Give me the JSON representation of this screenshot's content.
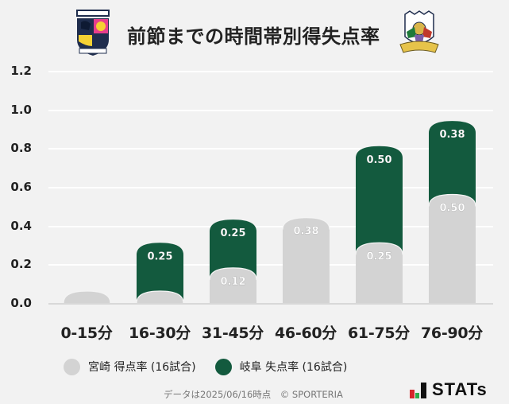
{
  "header": {
    "title": "前節までの時間帯別得失点率",
    "left_logo": "miyazaki-crest",
    "left_logo_text_top": "TEGEVAJARO",
    "left_logo_text_bottom": "MIYAZAKI",
    "right_logo": "fc-gifu-crest",
    "right_logo_text": "FC GIFU"
  },
  "colors": {
    "background": "#f2f2f2",
    "miyazaki": "#d3d3d3",
    "gifu": "#135a3e",
    "gridline": "#ffffff",
    "baseline": "#d8d8d8"
  },
  "legend": {
    "items": [
      {
        "label": "宮崎 得点率 (16試合)",
        "color": "#d3d3d3"
      },
      {
        "label": "岐阜 失点率 (16試合)",
        "color": "#135a3e"
      }
    ]
  },
  "footer": {
    "note": "データは2025/06/16時点　© SPORTERIA",
    "brand": "STATs"
  },
  "chart_data": {
    "type": "bar",
    "stacked": true,
    "title": "前節までの時間帯別得失点率",
    "xlabel": "",
    "ylabel": "",
    "ylim": [
      0,
      1.2
    ],
    "yticks": [
      "0.0",
      "0.2",
      "0.4",
      "0.6",
      "0.8",
      "1.0",
      "1.2"
    ],
    "grid": true,
    "legend_position": "bottom",
    "categories": [
      "0-15分",
      "16-30分",
      "31-45分",
      "46-60分",
      "61-75分",
      "76-90分"
    ],
    "series": [
      {
        "name": "宮崎 得点率 (16試合)",
        "color": "#d3d3d3",
        "values": [
          0,
          0,
          0.12,
          0.38,
          0.25,
          0.5
        ],
        "labels": [
          "",
          "",
          "0.12",
          "0.38",
          "0.25",
          "0.50"
        ]
      },
      {
        "name": "岐阜 失点率 (16試合)",
        "color": "#135a3e",
        "values": [
          0,
          0.25,
          0.25,
          0,
          0.5,
          0.38
        ],
        "labels": [
          "",
          "0.25",
          "0.25",
          "",
          "0.50",
          "0.38"
        ]
      }
    ]
  }
}
